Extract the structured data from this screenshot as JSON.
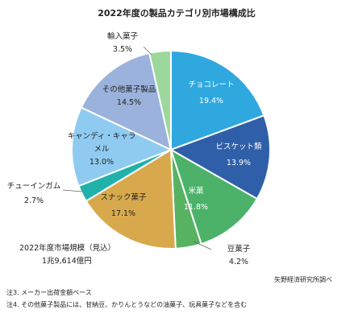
{
  "chart_data": {
    "type": "pie",
    "title": "2022年度の製品カテゴリ別市場構成比",
    "slices": [
      {
        "label": "チョコレート",
        "value": 19.4,
        "value_label": "19.4%",
        "color": "#2FA8E0",
        "text_color": "#ffffff"
      },
      {
        "label": "ビスケット類",
        "value": 13.9,
        "value_label": "13.9%",
        "color": "#2F5FA8",
        "text_color": "#ffffff"
      },
      {
        "label": "米菓",
        "value": 11.8,
        "value_label": "11.8%",
        "color": "#4CB26A",
        "text_color": "#ffffff"
      },
      {
        "label": "豆菓子",
        "value": 4.2,
        "value_label": "4.2%",
        "color": "#57B361",
        "text_color": "#222222"
      },
      {
        "label": "スナック菓子",
        "value": 17.1,
        "value_label": "17.1%",
        "color": "#D8A94C",
        "text_color": "#222222"
      },
      {
        "label": "チューインガム",
        "value": 2.7,
        "value_label": "2.7%",
        "color": "#20B2AA",
        "text_color": "#222222"
      },
      {
        "label": "キャンディ・キャラメル",
        "value": 13.0,
        "value_label": "13.0%",
        "color": "#8FCBF0",
        "text_color": "#222222"
      },
      {
        "label": "その他菓子製品",
        "value": 14.5,
        "value_label": "14.5%",
        "color": "#9BB2DC",
        "text_color": "#222222"
      },
      {
        "label": "輸入菓子",
        "value": 3.5,
        "value_label": "3.5%",
        "color": "#9CD89C",
        "text_color": "#222222"
      }
    ],
    "annotation": {
      "title": "2022年度市場規模（見込）",
      "value": "1兆9,614億円"
    },
    "source": "矢野経済研究所調べ"
  },
  "notes": [
    "注3. メーカー出荷金額ベース",
    "注4. その他菓子製品には、甘納豆、かりんとうなどの油菓子、玩具菓子などを含む"
  ]
}
